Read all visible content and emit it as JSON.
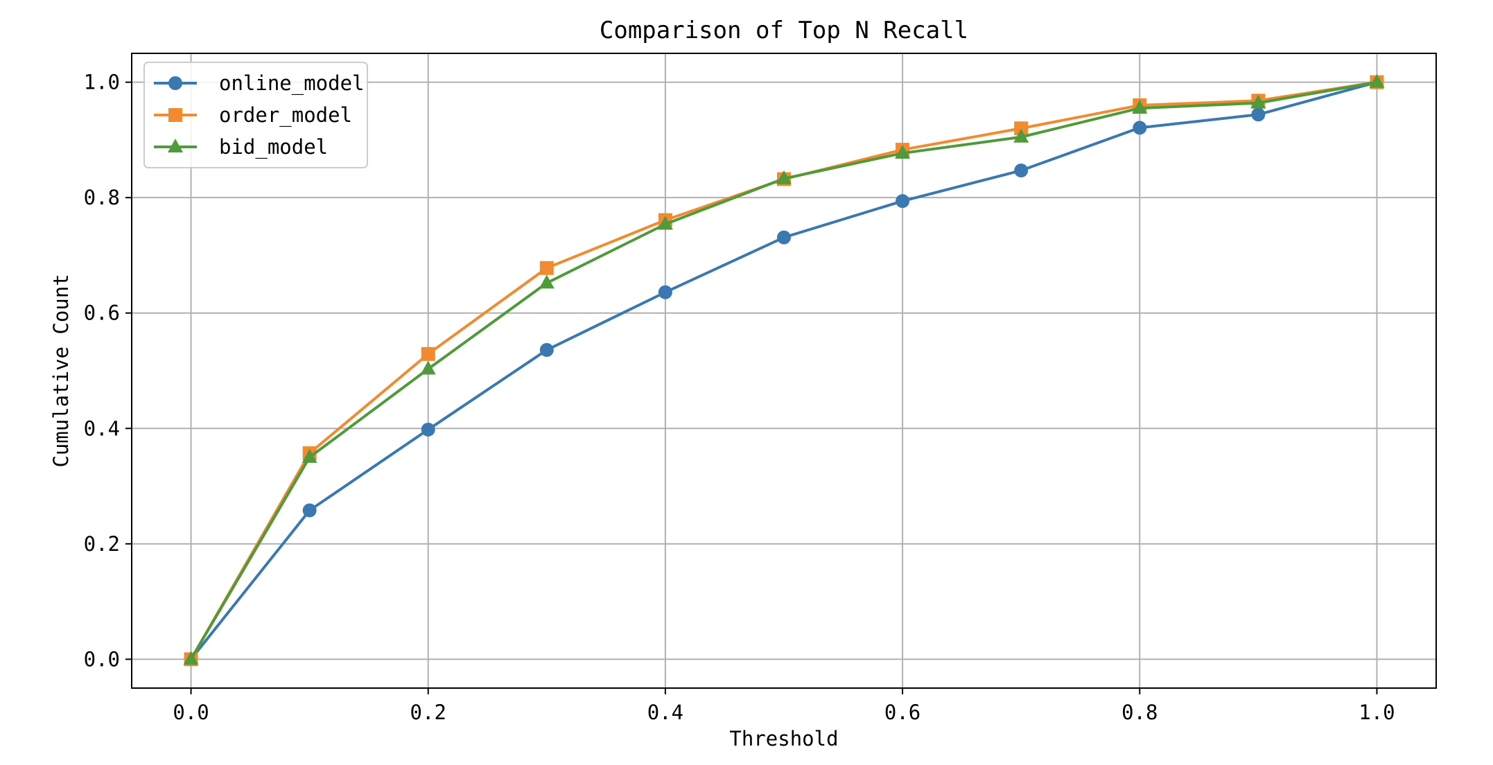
{
  "chart_data": {
    "type": "line",
    "title": "Comparison of Top N Recall",
    "xlabel": "Threshold",
    "ylabel": "Cumulative Count",
    "xlim": [
      -0.05,
      1.05
    ],
    "ylim": [
      -0.05,
      1.05
    ],
    "x_ticks": [
      "0.0",
      "0.2",
      "0.4",
      "0.6",
      "0.8",
      "1.0"
    ],
    "y_ticks": [
      "0.0",
      "0.2",
      "0.4",
      "0.6",
      "0.8",
      "1.0"
    ],
    "grid": true,
    "legend_position": "upper-left",
    "x": [
      0.0,
      0.1,
      0.2,
      0.3,
      0.4,
      0.5,
      0.6,
      0.7,
      0.8,
      0.9,
      1.0
    ],
    "series": [
      {
        "name": "online_model",
        "color": "#3a78b1",
        "marker": "circle",
        "values": [
          0.0,
          0.258,
          0.398,
          0.536,
          0.636,
          0.731,
          0.794,
          0.847,
          0.921,
          0.944,
          1.0
        ]
      },
      {
        "name": "order_model",
        "color": "#f28b30",
        "marker": "square",
        "values": [
          0.0,
          0.357,
          0.529,
          0.678,
          0.761,
          0.832,
          0.883,
          0.92,
          0.96,
          0.968,
          1.0
        ]
      },
      {
        "name": "bid_model",
        "color": "#4f9a3a",
        "marker": "triangle",
        "values": [
          0.0,
          0.35,
          0.503,
          0.652,
          0.754,
          0.833,
          0.877,
          0.905,
          0.955,
          0.964,
          1.0
        ]
      }
    ]
  }
}
